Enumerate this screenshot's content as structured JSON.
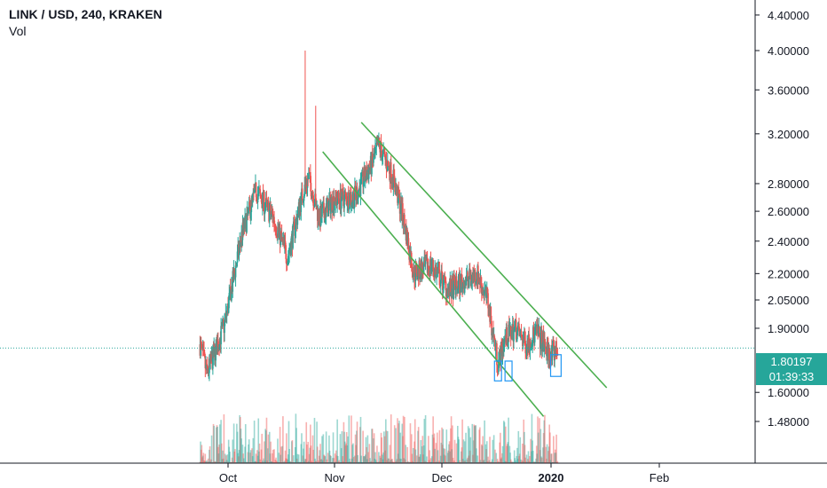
{
  "legend": {
    "symbol_line": "LINK / USD, 240, KRAKEN",
    "volume_label": "Vol"
  },
  "price_axis": {
    "ticks": [
      "4.40000",
      "4.00000",
      "3.60000",
      "3.20000",
      "2.80000",
      "2.60000",
      "2.40000",
      "2.20000",
      "2.05000",
      "1.90000",
      "1.60000",
      "1.48000"
    ],
    "last_price": "1.80197",
    "countdown": "01:39:33"
  },
  "time_axis": {
    "ticks": [
      "Oct",
      "Nov",
      "Dec",
      "2020",
      "Feb"
    ]
  },
  "colors": {
    "up": "#26a69a",
    "down": "#ef5350",
    "channel": "#4caf50",
    "box": "#2196f3",
    "price_tag": "#26a69a",
    "axis_text": "#131722",
    "price_line": "#26a69a"
  },
  "chart_data": {
    "type": "candlestick",
    "title": "LINK / USD, 240, KRAKEN",
    "interval_minutes": 240,
    "exchange": "KRAKEN",
    "scale": "log",
    "ylim": [
      1.4,
      4.45
    ],
    "xlim": [
      "2019-09-19",
      "2020-02-24"
    ],
    "x_ticks": [
      "Oct",
      "Nov",
      "Dec",
      "2020",
      "Feb"
    ],
    "last_price": 1.80197,
    "bar_countdown": "01:39:33",
    "approx_closes": [
      {
        "date": "2019-09-23",
        "price": 1.82
      },
      {
        "date": "2019-09-25",
        "price": 1.68
      },
      {
        "date": "2019-09-30",
        "price": 1.92
      },
      {
        "date": "2019-10-05",
        "price": 2.45
      },
      {
        "date": "2019-10-09",
        "price": 2.75
      },
      {
        "date": "2019-10-14",
        "price": 2.55
      },
      {
        "date": "2019-10-18",
        "price": 2.3
      },
      {
        "date": "2019-10-22",
        "price": 2.7
      },
      {
        "date": "2019-10-24",
        "price": 2.85
      },
      {
        "date": "2019-10-27",
        "price": 2.55
      },
      {
        "date": "2019-10-31",
        "price": 2.68
      },
      {
        "date": "2019-11-06",
        "price": 2.7
      },
      {
        "date": "2019-11-11",
        "price": 2.95
      },
      {
        "date": "2019-11-13",
        "price": 3.1
      },
      {
        "date": "2019-11-17",
        "price": 2.85
      },
      {
        "date": "2019-11-20",
        "price": 2.55
      },
      {
        "date": "2019-11-23",
        "price": 2.2
      },
      {
        "date": "2019-11-28",
        "price": 2.25
      },
      {
        "date": "2019-12-03",
        "price": 2.1
      },
      {
        "date": "2019-12-07",
        "price": 2.15
      },
      {
        "date": "2019-12-11",
        "price": 2.2
      },
      {
        "date": "2019-12-14",
        "price": 2.05
      },
      {
        "date": "2019-12-17",
        "price": 1.73
      },
      {
        "date": "2019-12-19",
        "price": 1.85
      },
      {
        "date": "2019-12-22",
        "price": 1.9
      },
      {
        "date": "2019-12-25",
        "price": 1.82
      },
      {
        "date": "2019-12-28",
        "price": 1.88
      },
      {
        "date": "2020-01-01",
        "price": 1.76
      },
      {
        "date": "2020-01-03",
        "price": 1.8
      }
    ],
    "spikes": [
      {
        "date": "2019-10-23",
        "high": 4.0
      },
      {
        "date": "2019-10-26",
        "high": 3.45
      }
    ],
    "channel_lines": [
      {
        "name": "upper",
        "start": {
          "date": "2019-11-08",
          "price": 3.3
        },
        "end": {
          "date": "2020-01-17",
          "price": 1.62
        }
      },
      {
        "name": "lower",
        "start": {
          "date": "2019-10-28",
          "price": 3.05
        },
        "end": {
          "date": "2019-12-30",
          "price": 1.5
        }
      }
    ],
    "boxes": [
      {
        "date_from": "2019-12-16",
        "date_to": "2019-12-18",
        "price_from": 1.65,
        "price_to": 1.74
      },
      {
        "date_from": "2019-12-19",
        "date_to": "2019-12-21",
        "price_from": 1.65,
        "price_to": 1.74
      },
      {
        "date_from": "2020-01-01",
        "date_to": "2020-01-04",
        "price_from": 1.67,
        "price_to": 1.77
      }
    ],
    "grid": false,
    "legend": "top-left"
  }
}
